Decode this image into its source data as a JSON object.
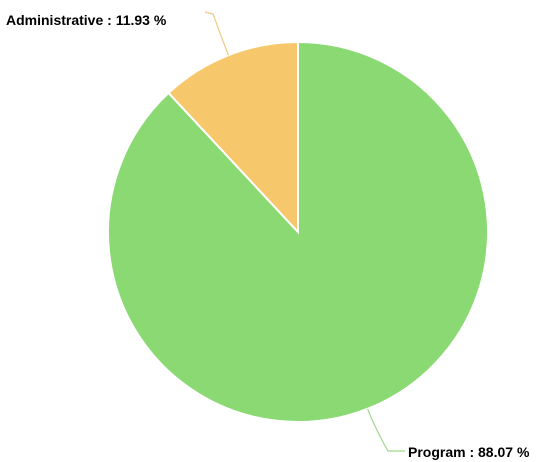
{
  "chart_data": {
    "type": "pie",
    "title": "",
    "slices": [
      {
        "name": "Program",
        "value": 88.07,
        "label": "Program : 88.07 %",
        "color": "#8ad972",
        "line_color": "#9fd98c"
      },
      {
        "name": "Administrative",
        "value": 11.93,
        "label": "Administrative : 11.93 %",
        "color": "#f7c76b",
        "line_color": "#eecb84"
      }
    ],
    "legend": "none",
    "start_angle": "12 o'clock",
    "direction": "clockwise"
  }
}
